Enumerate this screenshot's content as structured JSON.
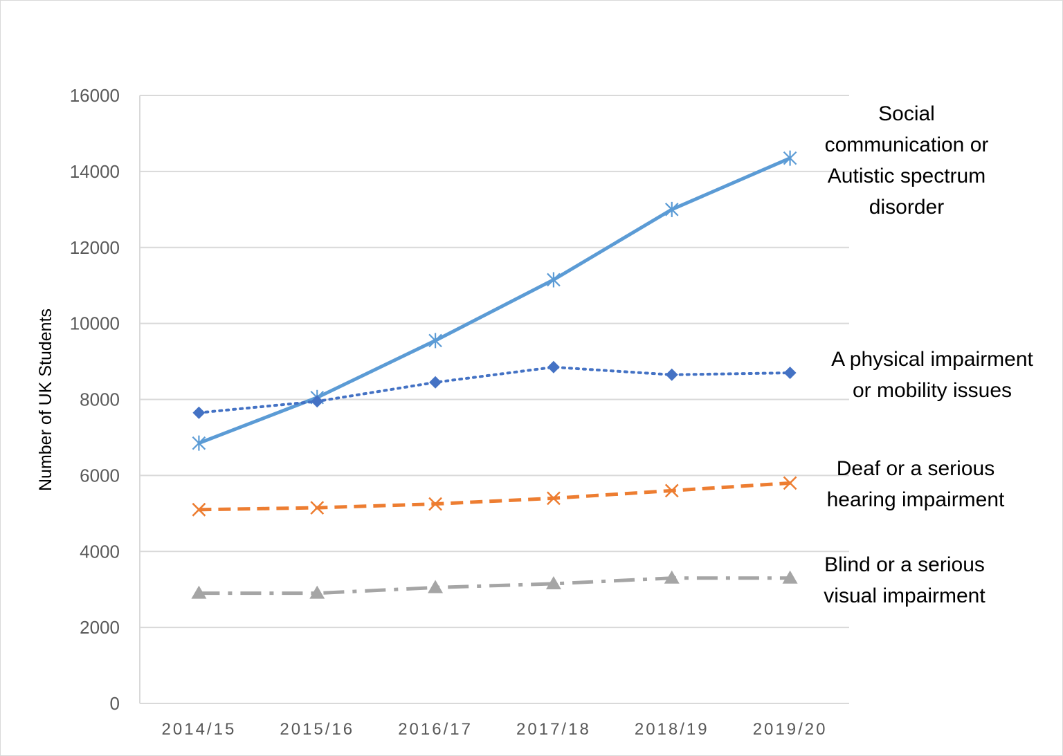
{
  "chart_data": {
    "type": "line",
    "title": "",
    "xlabel": "",
    "ylabel": "Number of UK Students",
    "ylim": [
      0,
      16000
    ],
    "yticks": [
      0,
      2000,
      4000,
      6000,
      8000,
      10000,
      12000,
      14000,
      16000
    ],
    "grid": "horizontal",
    "legend": "direct labels at right",
    "categories": [
      "2014/15",
      "2015/16",
      "2016/17",
      "2017/18",
      "2018/19",
      "2019/20"
    ],
    "series": [
      {
        "name": "Social communication or Autistic spectrum disorder",
        "label_lines": [
          "Social",
          "communication or",
          "Autistic spectrum",
          "disorder"
        ],
        "color": "#5b9bd5",
        "style": "solid",
        "marker": "asterisk",
        "values": [
          6850,
          8050,
          9550,
          11150,
          13000,
          14350
        ]
      },
      {
        "name": "A physical impairment or mobility issues",
        "label_lines": [
          "A physical impairment",
          "or mobility issues"
        ],
        "color": "#4472c4",
        "style": "dotted",
        "marker": "diamond",
        "values": [
          7650,
          7950,
          8450,
          8850,
          8650,
          8700
        ]
      },
      {
        "name": "Deaf or a serious hearing impairment",
        "label_lines": [
          "Deaf or a serious",
          "hearing impairment"
        ],
        "color": "#ed7d31",
        "style": "dashed",
        "marker": "x",
        "values": [
          5100,
          5150,
          5250,
          5400,
          5600,
          5800
        ]
      },
      {
        "name": "Blind or a serious visual impairment",
        "label_lines": [
          "Blind or a serious",
          "visual impairment"
        ],
        "color": "#a5a5a5",
        "style": "dashdot",
        "marker": "triangle",
        "values": [
          2900,
          2900,
          3050,
          3150,
          3300,
          3300
        ]
      }
    ]
  }
}
